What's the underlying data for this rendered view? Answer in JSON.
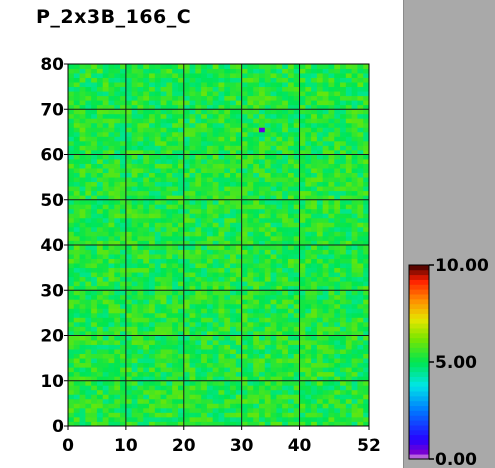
{
  "chart_data": {
    "type": "heatmap",
    "title": "P_2x3B_166_C",
    "x_range": [
      0,
      52
    ],
    "y_range": [
      0,
      80
    ],
    "x_ticks": [
      "0",
      "10",
      "20",
      "30",
      "40",
      "52"
    ],
    "y_ticks": [
      "0",
      "10",
      "20",
      "30",
      "40",
      "50",
      "60",
      "70",
      "80"
    ],
    "gridlines": true,
    "typical_value_range": [
      4.5,
      6.0
    ],
    "outlier_cells": [
      {
        "x": 33,
        "y": 65,
        "value": 0.5
      }
    ],
    "colorbar": {
      "range": [
        0,
        10
      ],
      "ticks": [
        "0.00",
        "5.00",
        "10.00"
      ]
    }
  }
}
